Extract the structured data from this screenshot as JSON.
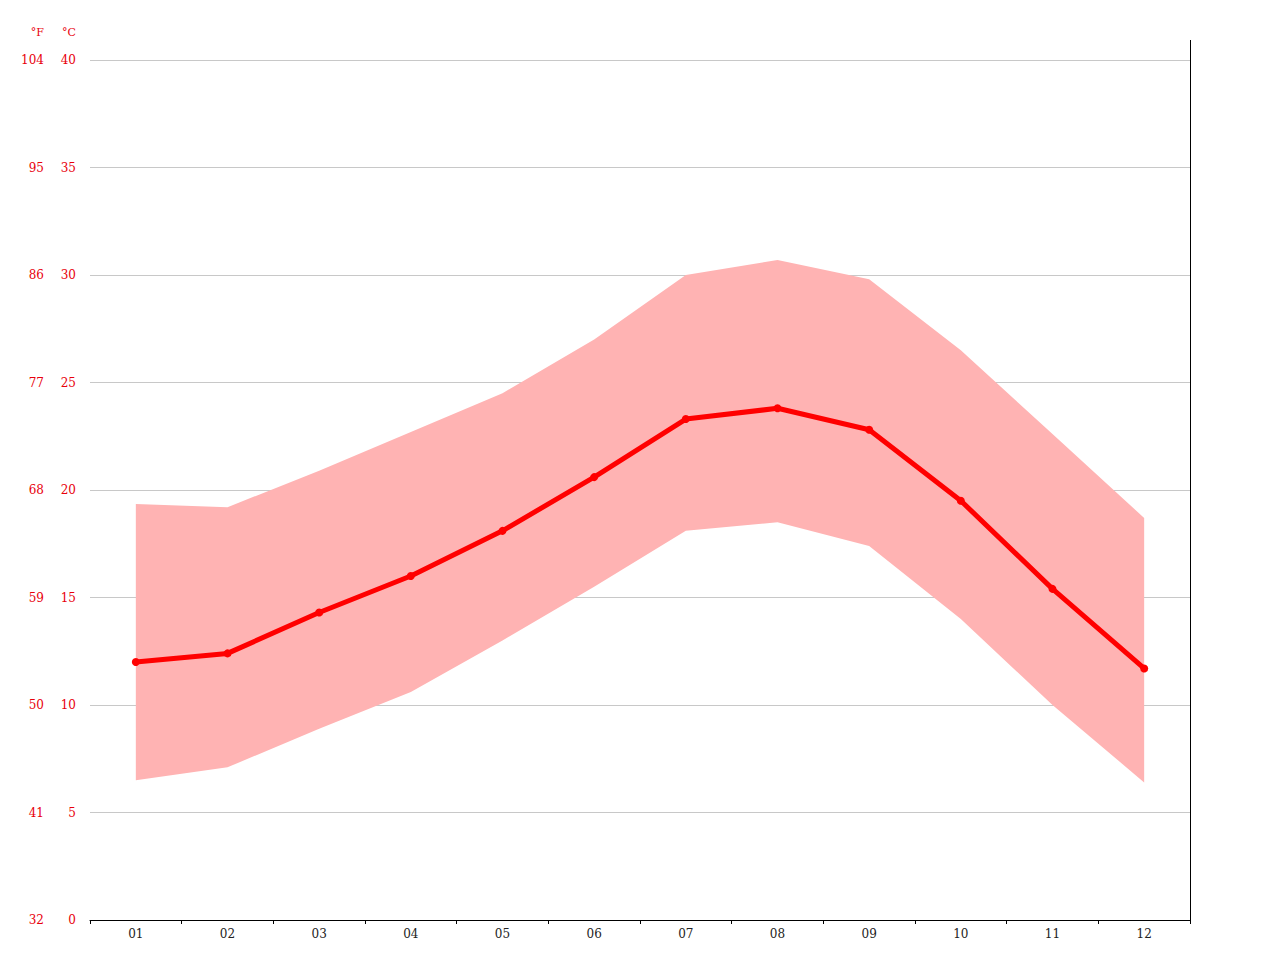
{
  "chart_data": {
    "type": "line",
    "categories": [
      "01",
      "02",
      "03",
      "04",
      "05",
      "06",
      "07",
      "08",
      "09",
      "10",
      "11",
      "12"
    ],
    "values": [
      12.0,
      12.4,
      14.3,
      16.0,
      18.1,
      20.6,
      23.3,
      23.8,
      22.8,
      19.5,
      15.4,
      11.7
    ],
    "color": "#ff0000",
    "marker": "circle",
    "band": {
      "lower": [
        6.5,
        7.1,
        8.9,
        10.6,
        13.0,
        15.5,
        18.1,
        18.5,
        17.4,
        14.0,
        10.0,
        6.4
      ],
      "upper": [
        19.35,
        19.2,
        20.9,
        22.7,
        24.5,
        27.0,
        30.0,
        30.7,
        29.8,
        26.5,
        22.6,
        18.7
      ],
      "color": "#ffb3b3"
    },
    "y_label": "°C",
    "ylim": [
      0,
      40
    ],
    "yticks": [
      0,
      5,
      10,
      15,
      20,
      25,
      30,
      35,
      40
    ],
    "y2_label": "°F",
    "y2lim": [
      32,
      104
    ],
    "y2ticks": [
      32,
      41,
      50,
      59,
      68,
      77,
      86,
      95,
      104
    ],
    "grid": true
  }
}
